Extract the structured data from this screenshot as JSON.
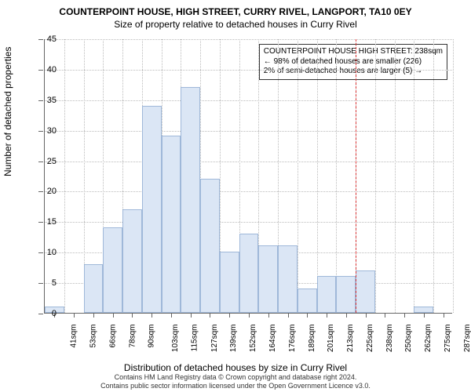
{
  "chart": {
    "type": "histogram",
    "title": "COUNTERPOINT HOUSE, HIGH STREET, CURRY RIVEL, LANGPORT, TA10 0EY",
    "subtitle": "Size of property relative to detached houses in Curry Rivel",
    "y_axis_label": "Number of detached properties",
    "x_axis_label": "Distribution of detached houses by size in Curry Rivel",
    "ylim": [
      0,
      45
    ],
    "ytick_step": 5,
    "yticks": [
      0,
      5,
      10,
      15,
      20,
      25,
      30,
      35,
      40,
      45
    ],
    "categories": [
      "41sqm",
      "53sqm",
      "66sqm",
      "78sqm",
      "90sqm",
      "103sqm",
      "115sqm",
      "127sqm",
      "139sqm",
      "152sqm",
      "164sqm",
      "176sqm",
      "189sqm",
      "201sqm",
      "213sqm",
      "225sqm",
      "238sqm",
      "250sqm",
      "262sqm",
      "275sqm",
      "287sqm"
    ],
    "values": [
      1,
      0,
      8,
      14,
      17,
      34,
      29,
      37,
      22,
      10,
      13,
      11,
      11,
      4,
      6,
      6,
      7,
      0,
      0,
      1,
      0
    ],
    "bar_fill": "#dbe6f5",
    "bar_stroke": "#9fb8d9",
    "grid_color": "#bbbbbb",
    "axis_color": "#666666",
    "background_color": "#ffffff",
    "reference_line_index": 16,
    "reference_line_color": "#d33",
    "title_fontsize": 12,
    "subtitle_fontsize": 12,
    "axis_label_fontsize": 12,
    "tick_fontsize": 11,
    "xtick_fontsize": 10
  },
  "annotation": {
    "line1": "COUNTERPOINT HOUSE HIGH STREET: 238sqm",
    "line2": "← 98% of detached houses are smaller (226)",
    "line3": "2% of semi-detached houses are larger (5) →",
    "border_color": "#333333",
    "background_color": "#ffffff",
    "fontsize": 10
  },
  "footer": {
    "line1": "Contains HM Land Registry data © Crown copyright and database right 2024.",
    "line2": "Contains public sector information licensed under the Open Government Licence v3.0.",
    "fontsize": 9
  }
}
